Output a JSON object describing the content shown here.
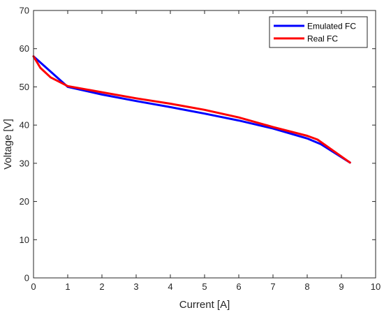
{
  "chart_data": {
    "type": "line",
    "title": "",
    "xlabel": "Current [A]",
    "ylabel": "Voltage [V]",
    "xlim": [
      0,
      10
    ],
    "ylim": [
      0,
      70
    ],
    "xticks": [
      0,
      1,
      2,
      3,
      4,
      5,
      6,
      7,
      8,
      9,
      10
    ],
    "yticks": [
      0,
      10,
      20,
      30,
      40,
      50,
      60,
      70
    ],
    "grid": false,
    "legend_position": "top-right",
    "series": [
      {
        "name": "Emulated FC",
        "color": "#0000ff",
        "x": [
          0,
          1,
          2,
          3,
          4,
          5,
          6,
          7,
          8,
          8.4,
          9.25
        ],
        "y": [
          58,
          50,
          48,
          46.3,
          44.7,
          43,
          41.2,
          39.1,
          36.5,
          35,
          30.2
        ]
      },
      {
        "name": "Real FC",
        "color": "#ff0000",
        "x": [
          0,
          0.2,
          0.5,
          1,
          2,
          3,
          4,
          5,
          6,
          7,
          8,
          8.3,
          9.25
        ],
        "y": [
          58,
          55,
          52.5,
          50.2,
          48.6,
          47,
          45.6,
          44,
          42,
          39.5,
          37.2,
          36.2,
          30.2
        ]
      }
    ]
  }
}
